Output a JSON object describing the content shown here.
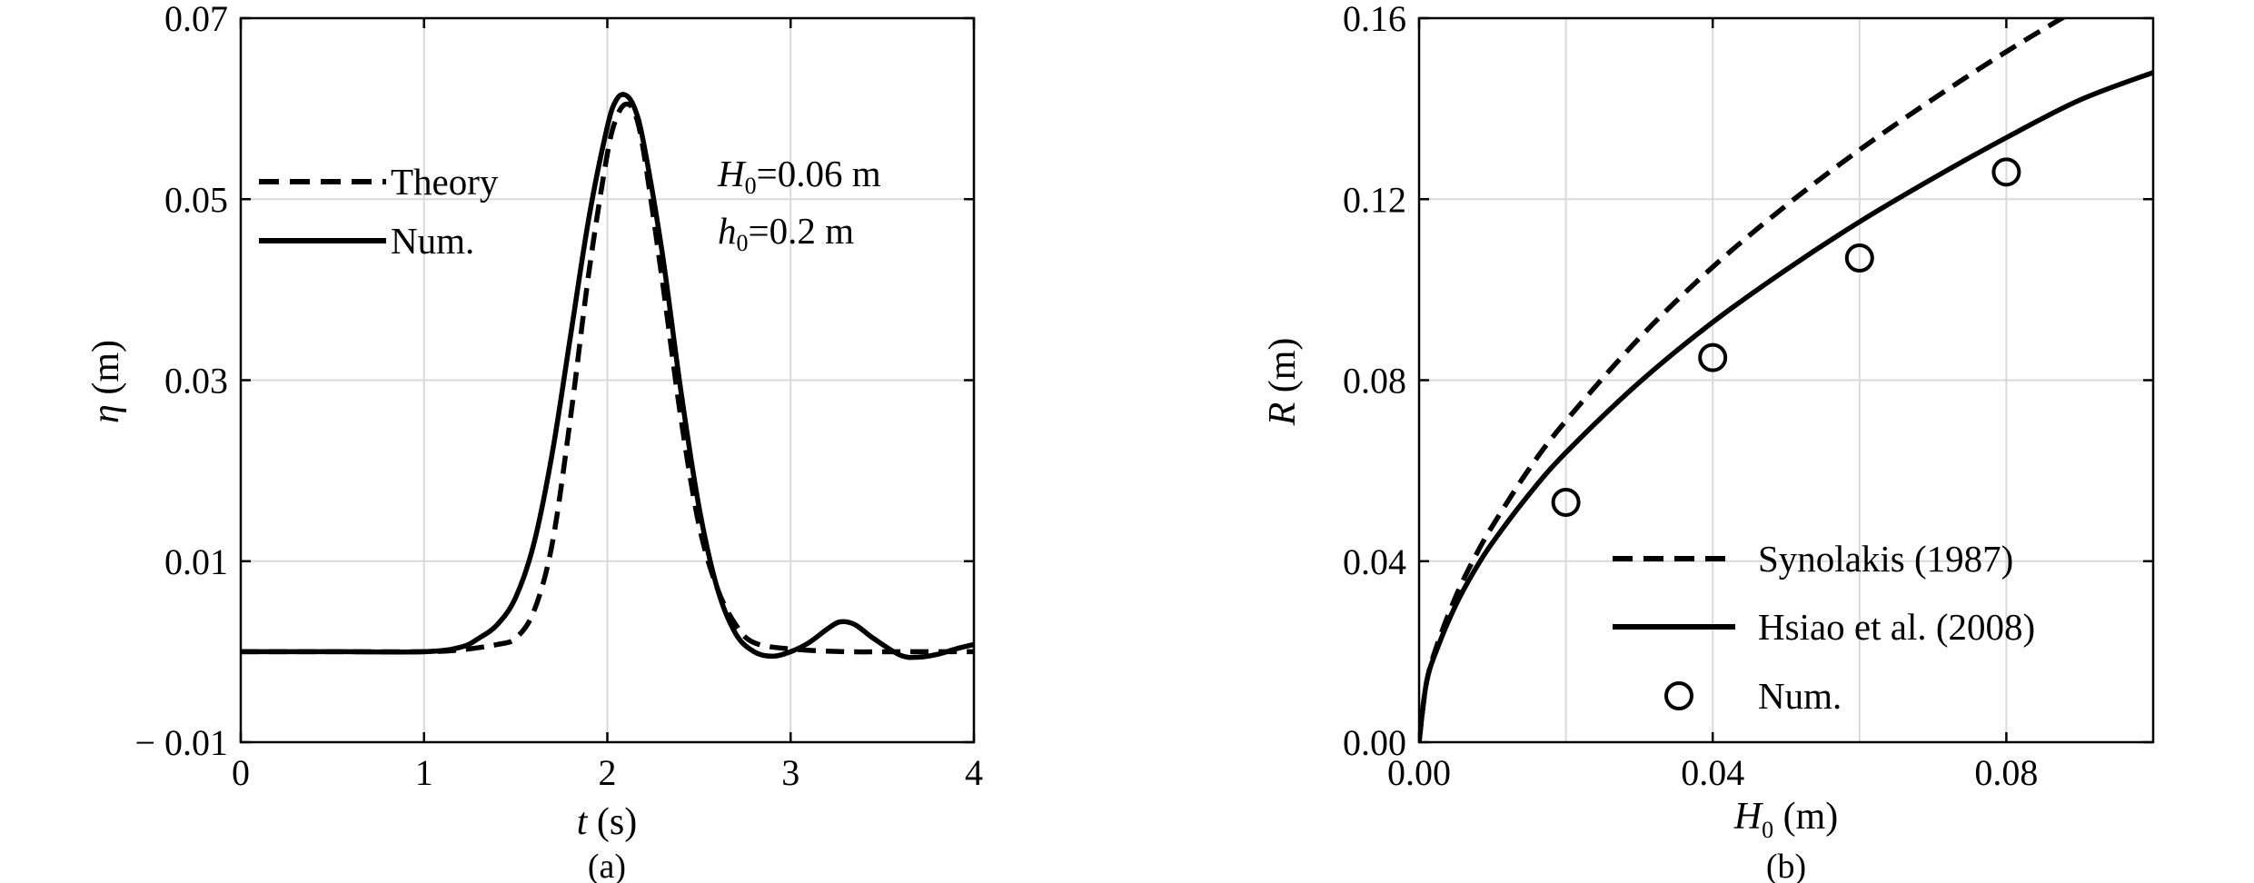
{
  "colors": {
    "ink": "#000000",
    "grid": "#d9d9d9",
    "background": "#ffffff"
  },
  "chart_data": [
    {
      "panel": "a",
      "caption": "(a)",
      "type": "line",
      "xlabel": {
        "symbol": "t",
        "unit": " (s)"
      },
      "ylabel": {
        "symbol": "η",
        "unit": " (m)"
      },
      "xlim": [
        0,
        4
      ],
      "ylim": [
        -0.01,
        0.07
      ],
      "xticks": [
        0,
        1,
        2,
        3,
        4
      ],
      "xtick_labels": [
        "0",
        "1",
        "2",
        "3",
        "4"
      ],
      "yticks": [
        -0.01,
        0.01,
        0.03,
        0.05,
        0.07
      ],
      "ytick_labels": [
        "− 0.01",
        "0.01",
        "0.03",
        "0.05",
        "0.07"
      ],
      "grid": true,
      "legend_position": "top-left",
      "annotations": [
        {
          "sym": "H",
          "sub": "0",
          "rest": "=0.06 m"
        },
        {
          "sym": "h",
          "sub": "0",
          "rest": "=0.2 m"
        }
      ],
      "series": [
        {
          "name": "Theory",
          "style": "dashed",
          "x": [
            0,
            0.5,
            1.0,
            1.2,
            1.4,
            1.5,
            1.6,
            1.7,
            1.8,
            1.9,
            2.0,
            2.05,
            2.1,
            2.15,
            2.2,
            2.3,
            2.4,
            2.5,
            2.6,
            2.7,
            2.8,
            3.0,
            3.3,
            3.6,
            4.0
          ],
          "y": [
            0,
            0,
            0,
            0.0002,
            0.0008,
            0.0015,
            0.0045,
            0.012,
            0.026,
            0.042,
            0.055,
            0.059,
            0.0605,
            0.0595,
            0.055,
            0.041,
            0.026,
            0.014,
            0.007,
            0.003,
            0.001,
            0.0003,
            0,
            0,
            0
          ]
        },
        {
          "name": "Num.",
          "style": "solid",
          "x": [
            0,
            0.5,
            1.0,
            1.2,
            1.3,
            1.4,
            1.5,
            1.6,
            1.7,
            1.8,
            1.9,
            2.0,
            2.05,
            2.1,
            2.15,
            2.2,
            2.3,
            2.4,
            2.5,
            2.6,
            2.7,
            2.8,
            2.9,
            3.0,
            3.1,
            3.2,
            3.27,
            3.35,
            3.45,
            3.6,
            3.7,
            3.8,
            3.9,
            4.0
          ],
          "y": [
            0,
            0,
            0,
            0.0005,
            0.0015,
            0.003,
            0.006,
            0.012,
            0.022,
            0.035,
            0.048,
            0.058,
            0.061,
            0.0615,
            0.06,
            0.056,
            0.044,
            0.029,
            0.016,
            0.007,
            0.002,
            0,
            -0.0005,
            0,
            0.001,
            0.0025,
            0.0033,
            0.003,
            0.0015,
            -0.0004,
            -0.0006,
            -0.0003,
            0.0003,
            0.0008
          ]
        }
      ]
    },
    {
      "panel": "b",
      "caption": "(b)",
      "type": "line",
      "xlabel": {
        "symbol": "H",
        "sub": "0",
        "unit": " (m)"
      },
      "ylabel": {
        "symbol": "R",
        "unit": " (m)"
      },
      "xlim": [
        0,
        0.1
      ],
      "ylim": [
        0,
        0.16
      ],
      "xticks": [
        0,
        0.04,
        0.08
      ],
      "xtick_labels": [
        "0.00",
        "0.04",
        "0.08"
      ],
      "yticks": [
        0,
        0.04,
        0.08,
        0.12,
        0.16
      ],
      "ytick_labels": [
        "0.00",
        "0.04",
        "0.08",
        "0.12",
        "0.16"
      ],
      "xgrid": [
        0.02,
        0.04,
        0.06,
        0.08
      ],
      "grid": true,
      "legend_position": "bottom-right",
      "series": [
        {
          "name": "Synolakis (1987)",
          "style": "dashed",
          "x": [
            0,
            0.001,
            0.0025,
            0.005,
            0.0075,
            0.01,
            0.015,
            0.02,
            0.03,
            0.04,
            0.05,
            0.06,
            0.07,
            0.08,
            0.09,
            0.1
          ],
          "y": [
            0,
            0.0131,
            0.0217,
            0.0322,
            0.0406,
            0.0478,
            0.0604,
            0.071,
            0.0893,
            0.105,
            0.1186,
            0.1309,
            0.1421,
            0.1526,
            0.1623,
            0.1716
          ]
        },
        {
          "name": "Hsiao et al. (2008)",
          "style": "solid",
          "x": [
            0,
            0.001,
            0.0025,
            0.005,
            0.0075,
            0.01,
            0.015,
            0.02,
            0.03,
            0.04,
            0.05,
            0.06,
            0.07,
            0.08,
            0.09,
            0.1
          ],
          "y": [
            0,
            0.0131,
            0.0208,
            0.0303,
            0.0378,
            0.0441,
            0.0548,
            0.064,
            0.0795,
            0.0928,
            0.1044,
            0.115,
            0.1246,
            0.1336,
            0.1419,
            0.148
          ]
        },
        {
          "name": "Num.",
          "style": "markers",
          "x": [
            0.02,
            0.04,
            0.06,
            0.08
          ],
          "y": [
            0.053,
            0.085,
            0.107,
            0.126
          ]
        }
      ]
    }
  ]
}
